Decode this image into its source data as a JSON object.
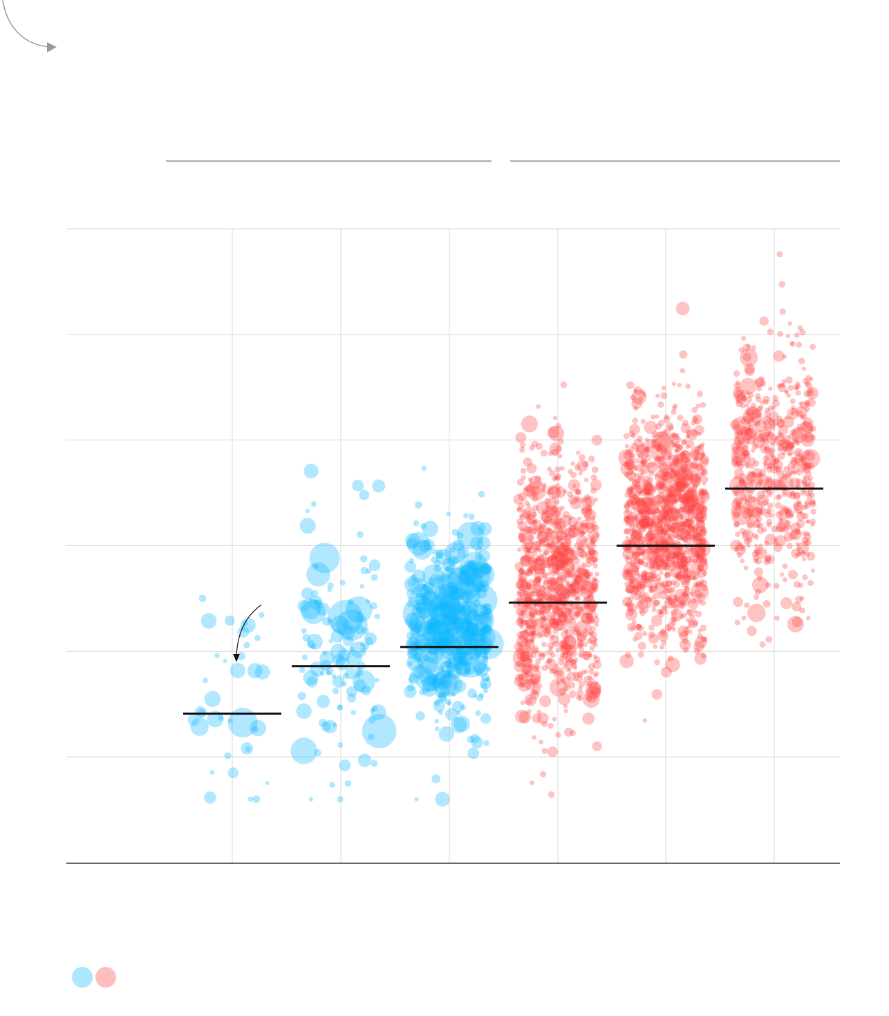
{
  "colors": {
    "group_a": "#11b8ff",
    "group_b": "#ff4444",
    "grid": "#d9d9d9",
    "median": "#111111",
    "arrow": "#9a9a9a"
  },
  "icons": {
    "top_left_arrow": "curved-arrow-icon",
    "annotation_arrow": "curved-arrow-icon"
  },
  "legend": {
    "swatches": [
      {
        "key": "group_a",
        "color": "#11b8ff"
      },
      {
        "key": "group_b",
        "color": "#ff4444"
      }
    ]
  },
  "chart_data": {
    "type": "scatter",
    "note_style": "jittered strip plot with bubble sizes and median lines",
    "columns": 6,
    "y_gridlines": 6,
    "series": [
      {
        "group": "group_a",
        "column": 1,
        "median": 0.235,
        "count": 36
      },
      {
        "group": "group_a",
        "column": 2,
        "median": 0.31,
        "count": 120
      },
      {
        "group": "group_a",
        "column": 3,
        "median": 0.34,
        "count": 420
      },
      {
        "group": "group_b",
        "column": 4,
        "median": 0.41,
        "count": 900
      },
      {
        "group": "group_b",
        "column": 5,
        "median": 0.5,
        "count": 1000
      },
      {
        "group": "group_b",
        "column": 6,
        "median": 0.59,
        "count": 550
      }
    ]
  }
}
